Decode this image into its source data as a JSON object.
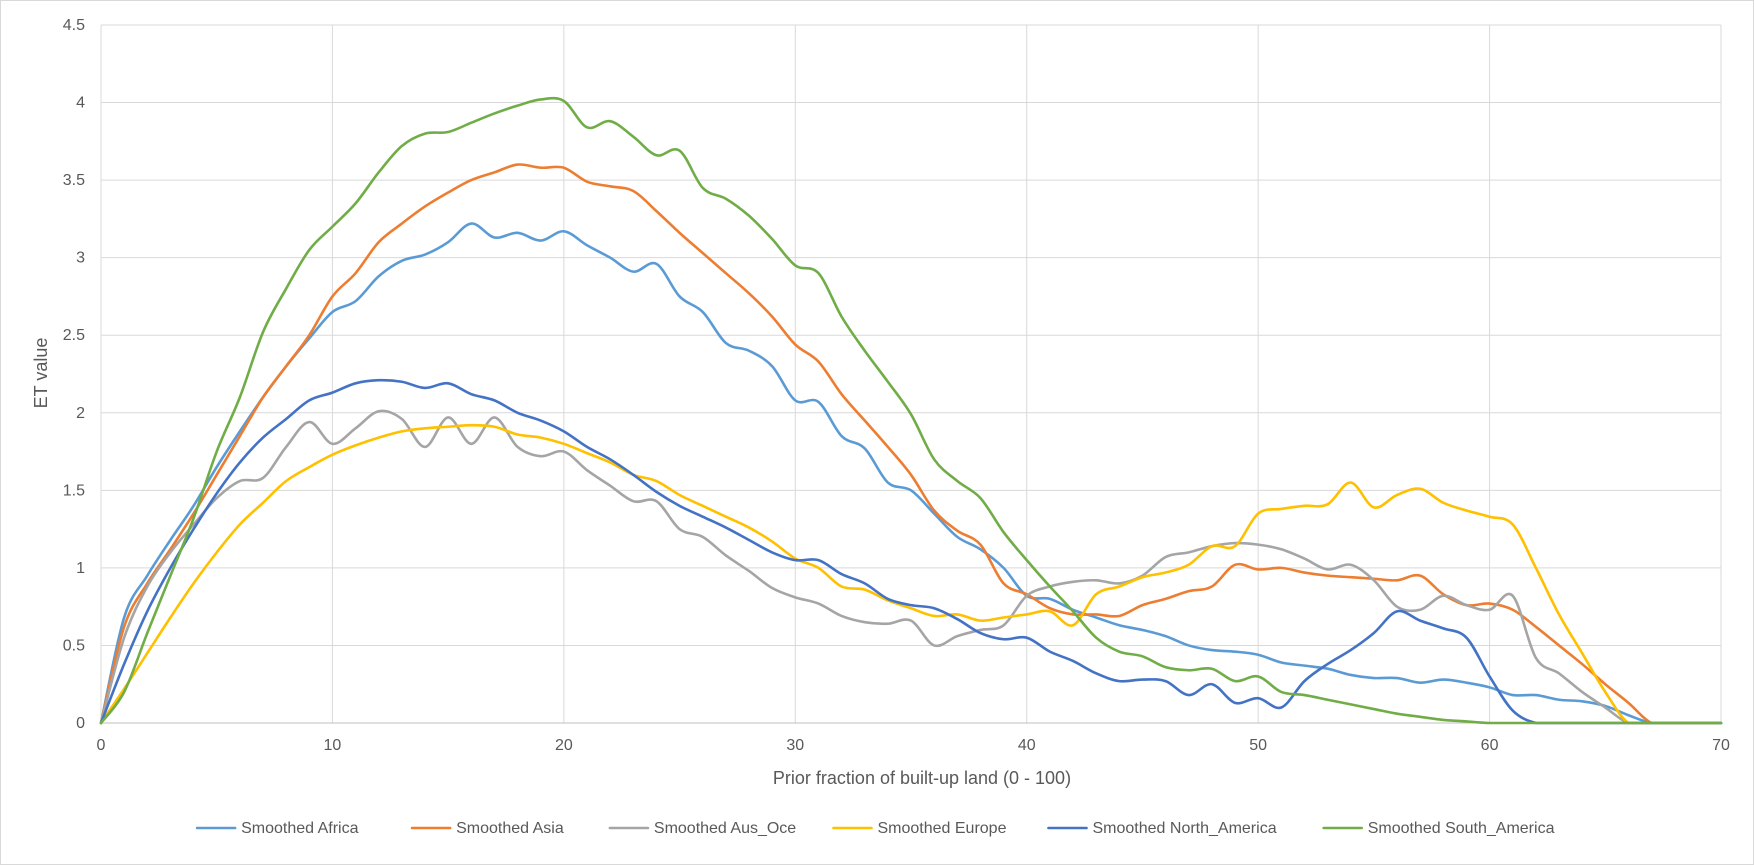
{
  "chart_data": {
    "type": "line",
    "xlabel": "Prior fraction of built-up land (0 - 100)",
    "ylabel": "ET value",
    "xlim": [
      0,
      70
    ],
    "ylim": [
      0,
      4.5
    ],
    "x_ticks": [
      0,
      10,
      20,
      30,
      40,
      50,
      60,
      70
    ],
    "y_ticks": [
      0,
      0.5,
      1,
      1.5,
      2,
      2.5,
      3,
      3.5,
      4,
      4.5
    ],
    "y_tick_labels": [
      "0",
      "0.5",
      "1",
      "1.5",
      "2",
      "2.5",
      "3",
      "3.5",
      "4",
      "4.5"
    ],
    "grid": true,
    "legend_position": "bottom",
    "series": [
      {
        "name": "Smoothed Africa",
        "color": "#5B9BD5",
        "x": [
          0,
          1,
          2,
          3,
          4,
          5,
          6,
          7,
          8,
          9,
          10,
          11,
          12,
          13,
          14,
          15,
          16,
          17,
          18,
          19,
          20,
          21,
          22,
          23,
          24,
          25,
          26,
          27,
          28,
          29,
          30,
          31,
          32,
          33,
          34,
          35,
          36,
          37,
          38,
          39,
          40,
          41,
          42,
          43,
          44,
          45,
          46,
          47,
          48,
          49,
          50,
          51,
          52,
          53,
          54,
          55,
          56,
          57,
          58,
          59,
          60,
          61,
          62,
          63,
          64,
          65,
          66,
          67,
          68,
          69,
          70
        ],
        "y": [
          0,
          0.68,
          0.95,
          1.18,
          1.4,
          1.65,
          1.88,
          2.1,
          2.3,
          2.48,
          2.65,
          2.72,
          2.88,
          2.98,
          3.02,
          3.1,
          3.22,
          3.13,
          3.16,
          3.11,
          3.17,
          3.08,
          3,
          2.91,
          2.96,
          2.75,
          2.65,
          2.45,
          2.4,
          2.3,
          2.08,
          2.07,
          1.85,
          1.77,
          1.55,
          1.5,
          1.35,
          1.2,
          1.12,
          1.0,
          0.82,
          0.8,
          0.73,
          0.68,
          0.63,
          0.6,
          0.56,
          0.5,
          0.47,
          0.46,
          0.44,
          0.39,
          0.37,
          0.35,
          0.31,
          0.29,
          0.29,
          0.26,
          0.28,
          0.26,
          0.23,
          0.18,
          0.18,
          0.15,
          0.14,
          0.11,
          0.05,
          0,
          0,
          0,
          0
        ]
      },
      {
        "name": "Smoothed Asia",
        "color": "#ED7D31",
        "x": [
          0,
          1,
          2,
          3,
          4,
          5,
          6,
          7,
          8,
          9,
          10,
          11,
          12,
          13,
          14,
          15,
          16,
          17,
          18,
          19,
          20,
          21,
          22,
          23,
          24,
          25,
          26,
          27,
          28,
          29,
          30,
          31,
          32,
          33,
          34,
          35,
          36,
          37,
          38,
          39,
          40,
          41,
          42,
          43,
          44,
          45,
          46,
          47,
          48,
          49,
          50,
          51,
          52,
          53,
          54,
          55,
          56,
          57,
          58,
          59,
          60,
          61,
          62,
          63,
          64,
          65,
          66,
          67,
          68,
          69,
          70
        ],
        "y": [
          0,
          0.62,
          0.9,
          1.12,
          1.35,
          1.6,
          1.85,
          2.1,
          2.3,
          2.5,
          2.75,
          2.9,
          3.1,
          3.22,
          3.33,
          3.42,
          3.5,
          3.55,
          3.6,
          3.58,
          3.58,
          3.49,
          3.46,
          3.43,
          3.3,
          3.16,
          3.03,
          2.9,
          2.77,
          2.62,
          2.44,
          2.33,
          2.12,
          1.95,
          1.78,
          1.6,
          1.37,
          1.24,
          1.15,
          0.9,
          0.83,
          0.74,
          0.7,
          0.7,
          0.69,
          0.76,
          0.8,
          0.85,
          0.88,
          1.02,
          0.99,
          1,
          0.97,
          0.95,
          0.94,
          0.93,
          0.92,
          0.95,
          0.83,
          0.76,
          0.77,
          0.73,
          0.62,
          0.5,
          0.38,
          0.25,
          0.13,
          0,
          0,
          0,
          0
        ]
      },
      {
        "name": "Smoothed Aus_Oce",
        "color": "#A5A5A5",
        "x": [
          0,
          1,
          2,
          3,
          4,
          5,
          6,
          7,
          8,
          9,
          10,
          11,
          12,
          13,
          14,
          15,
          16,
          17,
          18,
          19,
          20,
          21,
          22,
          23,
          24,
          25,
          26,
          27,
          28,
          29,
          30,
          31,
          32,
          33,
          34,
          35,
          36,
          37,
          38,
          39,
          40,
          41,
          42,
          43,
          44,
          45,
          46,
          47,
          48,
          49,
          50,
          51,
          52,
          53,
          54,
          55,
          56,
          57,
          58,
          59,
          60,
          61,
          62,
          63,
          64,
          65,
          66,
          67,
          68,
          69,
          70
        ],
        "y": [
          0,
          0.55,
          0.88,
          1.1,
          1.28,
          1.45,
          1.56,
          1.58,
          1.78,
          1.94,
          1.8,
          1.9,
          2.01,
          1.96,
          1.78,
          1.97,
          1.8,
          1.97,
          1.78,
          1.72,
          1.75,
          1.63,
          1.53,
          1.43,
          1.43,
          1.25,
          1.2,
          1.08,
          0.98,
          0.87,
          0.81,
          0.77,
          0.69,
          0.65,
          0.64,
          0.66,
          0.5,
          0.56,
          0.6,
          0.63,
          0.82,
          0.88,
          0.91,
          0.92,
          0.9,
          0.95,
          1.07,
          1.1,
          1.14,
          1.16,
          1.15,
          1.12,
          1.06,
          0.99,
          1.02,
          0.92,
          0.75,
          0.73,
          0.82,
          0.76,
          0.73,
          0.82,
          0.42,
          0.32,
          0.2,
          0.1,
          0,
          0,
          0,
          0,
          0
        ]
      },
      {
        "name": "Smoothed Europe",
        "color": "#FFC000",
        "x": [
          0,
          1,
          2,
          3,
          4,
          5,
          6,
          7,
          8,
          9,
          10,
          11,
          12,
          13,
          14,
          15,
          16,
          17,
          18,
          19,
          20,
          21,
          22,
          23,
          24,
          25,
          26,
          27,
          28,
          29,
          30,
          31,
          32,
          33,
          34,
          35,
          36,
          37,
          38,
          39,
          40,
          41,
          42,
          43,
          44,
          45,
          46,
          47,
          48,
          49,
          50,
          51,
          52,
          53,
          54,
          55,
          56,
          57,
          58,
          59,
          60,
          61,
          62,
          63,
          64,
          65,
          66,
          67,
          68,
          69,
          70
        ],
        "y": [
          0,
          0.22,
          0.45,
          0.68,
          0.9,
          1.1,
          1.28,
          1.42,
          1.56,
          1.65,
          1.73,
          1.79,
          1.84,
          1.88,
          1.9,
          1.91,
          1.92,
          1.91,
          1.86,
          1.84,
          1.8,
          1.74,
          1.68,
          1.6,
          1.56,
          1.47,
          1.4,
          1.33,
          1.26,
          1.17,
          1.06,
          1.0,
          0.88,
          0.86,
          0.79,
          0.74,
          0.69,
          0.7,
          0.66,
          0.68,
          0.7,
          0.72,
          0.63,
          0.83,
          0.88,
          0.94,
          0.97,
          1.02,
          1.14,
          1.14,
          1.35,
          1.38,
          1.4,
          1.41,
          1.55,
          1.39,
          1.47,
          1.51,
          1.42,
          1.37,
          1.33,
          1.28,
          1.0,
          0.7,
          0.45,
          0.2,
          0,
          0,
          0,
          0,
          0
        ]
      },
      {
        "name": "Smoothed North_America",
        "color": "#4472C4",
        "x": [
          0,
          1,
          2,
          3,
          4,
          5,
          6,
          7,
          8,
          9,
          10,
          11,
          12,
          13,
          14,
          15,
          16,
          17,
          18,
          19,
          20,
          21,
          22,
          23,
          24,
          25,
          26,
          27,
          28,
          29,
          30,
          31,
          32,
          33,
          34,
          35,
          36,
          37,
          38,
          39,
          40,
          41,
          42,
          43,
          44,
          45,
          46,
          47,
          48,
          49,
          50,
          51,
          52,
          53,
          54,
          55,
          56,
          57,
          58,
          59,
          60,
          61,
          62,
          63,
          64,
          65,
          66,
          67,
          68,
          69,
          70
        ],
        "y": [
          0,
          0.38,
          0.72,
          1.0,
          1.25,
          1.48,
          1.68,
          1.84,
          1.96,
          2.08,
          2.13,
          2.19,
          2.21,
          2.2,
          2.16,
          2.19,
          2.12,
          2.08,
          2.0,
          1.95,
          1.88,
          1.78,
          1.7,
          1.6,
          1.49,
          1.4,
          1.33,
          1.26,
          1.18,
          1.1,
          1.05,
          1.05,
          0.96,
          0.9,
          0.8,
          0.76,
          0.74,
          0.67,
          0.58,
          0.54,
          0.55,
          0.46,
          0.4,
          0.32,
          0.27,
          0.28,
          0.27,
          0.18,
          0.25,
          0.13,
          0.16,
          0.1,
          0.27,
          0.38,
          0.47,
          0.58,
          0.72,
          0.66,
          0.61,
          0.55,
          0.3,
          0.08,
          0,
          0,
          0,
          0,
          0,
          0,
          0,
          0,
          0
        ]
      },
      {
        "name": "Smoothed South_America",
        "color": "#70AD47",
        "x": [
          0,
          1,
          2,
          3,
          4,
          5,
          6,
          7,
          8,
          9,
          10,
          11,
          12,
          13,
          14,
          15,
          16,
          17,
          18,
          19,
          20,
          21,
          22,
          23,
          24,
          25,
          26,
          27,
          28,
          29,
          30,
          31,
          32,
          33,
          34,
          35,
          36,
          37,
          38,
          39,
          40,
          41,
          42,
          43,
          44,
          45,
          46,
          47,
          48,
          49,
          50,
          51,
          52,
          53,
          54,
          55,
          56,
          57,
          58,
          59,
          60,
          61,
          62,
          63,
          64,
          65,
          66,
          67,
          68,
          69,
          70
        ],
        "y": [
          0,
          0.2,
          0.58,
          0.95,
          1.32,
          1.75,
          2.1,
          2.52,
          2.8,
          3.05,
          3.2,
          3.35,
          3.55,
          3.72,
          3.8,
          3.81,
          3.87,
          3.93,
          3.98,
          4.02,
          4.01,
          3.84,
          3.88,
          3.78,
          3.66,
          3.69,
          3.45,
          3.38,
          3.27,
          3.12,
          2.95,
          2.9,
          2.62,
          2.4,
          2.2,
          1.99,
          1.7,
          1.56,
          1.45,
          1.23,
          1.05,
          0.88,
          0.72,
          0.55,
          0.46,
          0.43,
          0.36,
          0.34,
          0.35,
          0.27,
          0.3,
          0.2,
          0.18,
          0.15,
          0.12,
          0.09,
          0.06,
          0.04,
          0.02,
          0.01,
          0,
          0,
          0,
          0,
          0,
          0,
          0,
          0,
          0,
          0,
          0
        ]
      }
    ]
  }
}
